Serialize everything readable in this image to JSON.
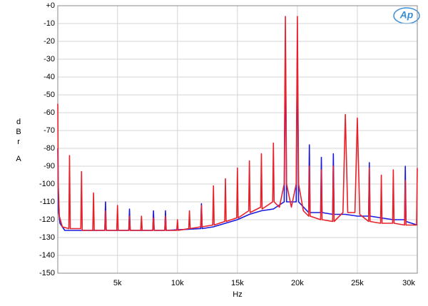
{
  "chart_data": {
    "type": "line",
    "y_label": [
      "dBr",
      "A"
    ],
    "x_label": "Hz",
    "logo": "Ap",
    "grid": true,
    "xlim": [
      20,
      30000
    ],
    "ylim": [
      -150,
      0
    ],
    "xticks": [
      {
        "value": 5000,
        "label": "5k"
      },
      {
        "value": 10000,
        "label": "10k"
      },
      {
        "value": 15000,
        "label": "15k"
      },
      {
        "value": 20000,
        "label": "20k"
      },
      {
        "value": 25000,
        "label": "25k"
      },
      {
        "value": 30000,
        "label": "30k"
      }
    ],
    "yticks": [
      {
        "value": 0,
        "label": "+0"
      },
      -10,
      -20,
      -30,
      -40,
      -50,
      -60,
      -70,
      -80,
      -90,
      -100,
      -110,
      -120,
      -130,
      -140,
      -150
    ],
    "series": [
      {
        "color": "#1a1adf",
        "x": [
          20,
          80,
          200,
          600,
          3940,
          4000,
          4060,
          5940,
          6000,
          6060,
          7940,
          8000,
          8060,
          8940,
          9000,
          9060,
          11940,
          12000,
          12060,
          13000,
          14000,
          15000,
          16000,
          17000,
          18000,
          18900,
          19000,
          19100,
          19900,
          20000,
          20100,
          20940,
          21000,
          21060,
          21940,
          22000,
          22060,
          22940,
          23000,
          23060,
          24000,
          25000,
          25940,
          26000,
          26060,
          27000,
          28000,
          28940,
          29000,
          29060,
          30000
        ],
        "values": [
          -80,
          -115,
          -122,
          -126,
          -126,
          -110,
          -126,
          -126,
          -114,
          -126,
          -126,
          -115,
          -126,
          -126,
          -115,
          -126,
          -125,
          -111,
          -125,
          -124,
          -122,
          -120,
          -117,
          -115,
          -114,
          -110,
          -20,
          -110,
          -110,
          -20,
          -110,
          -116,
          -78,
          -116,
          -116,
          -85,
          -116,
          -117,
          -83,
          -117,
          -117,
          -118,
          -118,
          -88,
          -118,
          -119,
          -120,
          -120,
          -90,
          -121,
          -123
        ]
      },
      {
        "color": "#e8202a",
        "x": [
          20,
          60,
          150,
          400,
          940,
          1000,
          1060,
          1940,
          2000,
          2060,
          2940,
          3000,
          3060,
          3940,
          4000,
          4060,
          4940,
          5000,
          5060,
          5940,
          6000,
          6060,
          6940,
          7000,
          7060,
          7940,
          8000,
          8060,
          8940,
          9000,
          9060,
          9940,
          10000,
          10060,
          10940,
          11000,
          11060,
          11940,
          12000,
          12060,
          12940,
          13000,
          13060,
          13940,
          14000,
          14060,
          14940,
          15000,
          15060,
          15940,
          16000,
          16060,
          16940,
          17000,
          17060,
          17940,
          18000,
          18060,
          18500,
          18900,
          19000,
          19100,
          19500,
          19900,
          20000,
          20100,
          20500,
          20940,
          21000,
          21060,
          21940,
          22000,
          22060,
          22940,
          23000,
          23060,
          23800,
          24000,
          24200,
          24800,
          25000,
          25200,
          25940,
          26000,
          26060,
          26940,
          27000,
          27060,
          27940,
          28000,
          28060,
          28940,
          29000,
          29060,
          29940,
          30000
        ],
        "values": [
          -55,
          -100,
          -118,
          -124,
          -125,
          -84,
          -125,
          -125,
          -93,
          -126,
          -126,
          -105,
          -126,
          -126,
          -115,
          -126,
          -126,
          -112,
          -126,
          -126,
          -118,
          -126,
          -126,
          -118,
          -126,
          -126,
          -119,
          -126,
          -126,
          -118,
          -126,
          -126,
          -120,
          -126,
          -125,
          -115,
          -125,
          -124,
          -112,
          -124,
          -123,
          -101,
          -123,
          -121,
          -97,
          -121,
          -119,
          -91,
          -119,
          -115,
          -87,
          -116,
          -113,
          -83,
          -114,
          -110,
          -77,
          -110,
          -113,
          -100,
          -6,
          -100,
          -113,
          -100,
          -6,
          -100,
          -115,
          -118,
          -90,
          -118,
          -120,
          -92,
          -120,
          -121,
          -90,
          -121,
          -116,
          -61,
          -116,
          -116,
          -63,
          -117,
          -121,
          -91,
          -121,
          -122,
          -95,
          -122,
          -122,
          -92,
          -122,
          -123,
          -98,
          -123,
          -123,
          -91
        ]
      }
    ]
  }
}
